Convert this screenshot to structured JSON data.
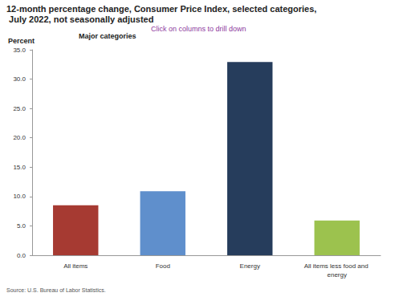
{
  "chart_data": {
    "type": "bar",
    "title": "12-month percentage change, Consumer Price Index, selected categories, July 2022, not seasonally adjusted",
    "subtitle": "Click on columns to drill down",
    "ylabel": "Percent",
    "annotation": "Major categories",
    "source": "Source: U.S. Bureau of Labor Statistics.",
    "categories": [
      "All items",
      "Food",
      "Energy",
      "All items less food and energy"
    ],
    "values": [
      8.5,
      10.9,
      32.9,
      5.9
    ],
    "colors": [
      "#a63a32",
      "#5f8fcc",
      "#263d5c",
      "#9cc24e"
    ],
    "ylim": [
      0,
      35
    ],
    "yticks": [
      {
        "value": 0,
        "label": "0.0"
      },
      {
        "value": 5,
        "label": "5.0"
      },
      {
        "value": 10,
        "label": "10.0"
      },
      {
        "value": 15,
        "label": "15.0"
      },
      {
        "value": 20,
        "label": "20.0"
      },
      {
        "value": 25,
        "label": "25.0"
      },
      {
        "value": 30,
        "label": "30.0"
      },
      {
        "value": 35,
        "label": "35.0"
      }
    ],
    "grid": false
  }
}
